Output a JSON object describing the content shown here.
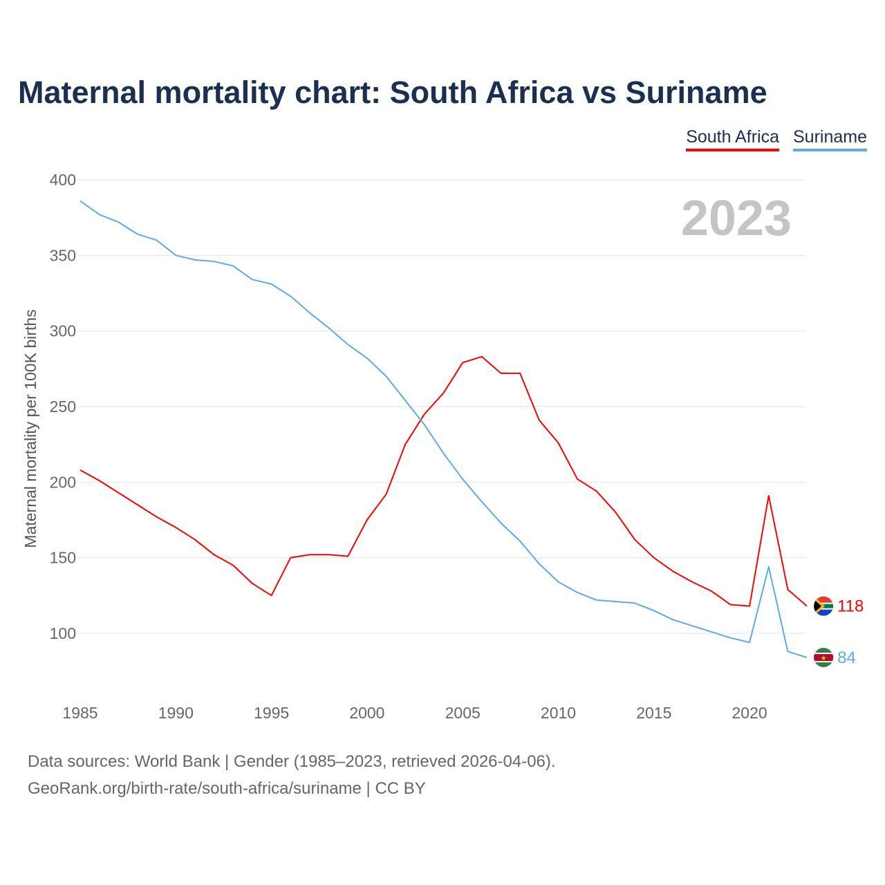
{
  "title": "Maternal mortality chart: South Africa vs Suriname",
  "footer": {
    "line1": "Data sources: World Bank | Gender (1985–2023, retrieved 2026-04-06).",
    "line2": "GeoRank.org/birth-rate/south-africa/suriname | CC BY"
  },
  "chart_data": {
    "type": "line",
    "title": "Maternal mortality chart: South Africa vs Suriname",
    "ylabel": "Maternal mortality per 100K births",
    "xlabel": "",
    "year_label": "2023",
    "ylim": [
      70,
      400
    ],
    "xlim": [
      1985,
      2023
    ],
    "yticks": [
      100,
      150,
      200,
      250,
      300,
      350,
      400
    ],
    "xticks": [
      1985,
      1990,
      1995,
      2000,
      2005,
      2010,
      2015,
      2020
    ],
    "grid": true,
    "legend_position": "top-right",
    "x": [
      1985,
      1986,
      1987,
      1988,
      1989,
      1990,
      1991,
      1992,
      1993,
      1994,
      1995,
      1996,
      1997,
      1998,
      1999,
      2000,
      2001,
      2002,
      2003,
      2004,
      2005,
      2006,
      2007,
      2008,
      2009,
      2010,
      2011,
      2012,
      2013,
      2014,
      2015,
      2016,
      2017,
      2018,
      2019,
      2020,
      2021,
      2022,
      2023
    ],
    "series": [
      {
        "name": "South Africa",
        "color": "#ff0000",
        "end_label": "118",
        "values": [
          208,
          201,
          193,
          185,
          177,
          170,
          162,
          152,
          145,
          133,
          125,
          150,
          152,
          152,
          151,
          175,
          192,
          225,
          245,
          259,
          279,
          283,
          272,
          272,
          241,
          226,
          202,
          194,
          180,
          162,
          150,
          141,
          134,
          128,
          119,
          118,
          191,
          129,
          118
        ]
      },
      {
        "name": "Suriname",
        "color": "#5ea8ee",
        "end_label": "84",
        "values": [
          386,
          377,
          372,
          364,
          360,
          350,
          347,
          346,
          343,
          334,
          331,
          323,
          312,
          302,
          291,
          282,
          270,
          254,
          238,
          219,
          202,
          187,
          173,
          161,
          146,
          134,
          127,
          122,
          121,
          120,
          115,
          109,
          105,
          101,
          97,
          94,
          144,
          88,
          84
        ]
      }
    ]
  }
}
